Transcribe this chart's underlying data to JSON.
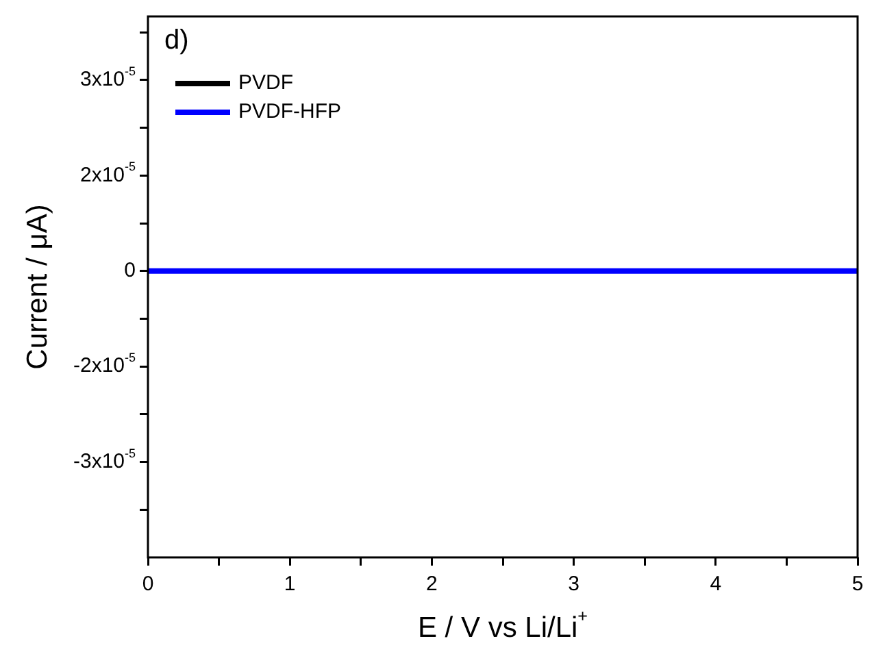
{
  "chart_data": {
    "type": "line",
    "xlabel": "E / V vs Li/Li$^{+}$",
    "ylabel": "Current / μA)",
    "annotations": [
      "d)"
    ],
    "series": [
      {
        "name": "PVDF",
        "color": "#000000",
        "values": [
          null,
          null
        ]
      },
      {
        "name": "PVDF-HFP",
        "color": "#0000ff",
        "values": [
          0,
          0
        ]
      }
    ],
    "x": [
      0,
      5
    ],
    "xlim": [
      0,
      5
    ],
    "xticks": [
      0,
      {
        "value": 0.5,
        "label": null
      },
      1,
      {
        "value": 1.5,
        "label": null
      },
      2,
      {
        "value": 2.5,
        "label": null
      },
      3,
      {
        "value": 3.5,
        "label": null
      },
      4,
      {
        "value": 4.5,
        "label": null
      },
      5
    ],
    "ylim": [
      -4.5e-05,
      4e-05
    ],
    "yticks": [
      {
        "value": -3.75e-05,
        "label": null
      },
      {
        "value": -3e-05,
        "label": "-3x10$^{-5}$"
      },
      {
        "value": -2.25e-05,
        "label": null
      },
      {
        "value": -1.5e-05,
        "label": "-2x10$^{-5}$"
      },
      {
        "value": -7.5e-06,
        "label": null
      },
      0,
      {
        "value": 7.5e-06,
        "label": null
      },
      {
        "value": 1.5e-05,
        "label": "2x10$^{-5}$"
      },
      {
        "value": 2.25e-05,
        "label": null
      },
      {
        "value": 3e-05,
        "label": "3x10$^{-5}$"
      },
      {
        "value": 3.75e-05,
        "label": null
      }
    ],
    "legend": "top left",
    "marker": "none",
    "line_style": "solid",
    "grid": false
  }
}
